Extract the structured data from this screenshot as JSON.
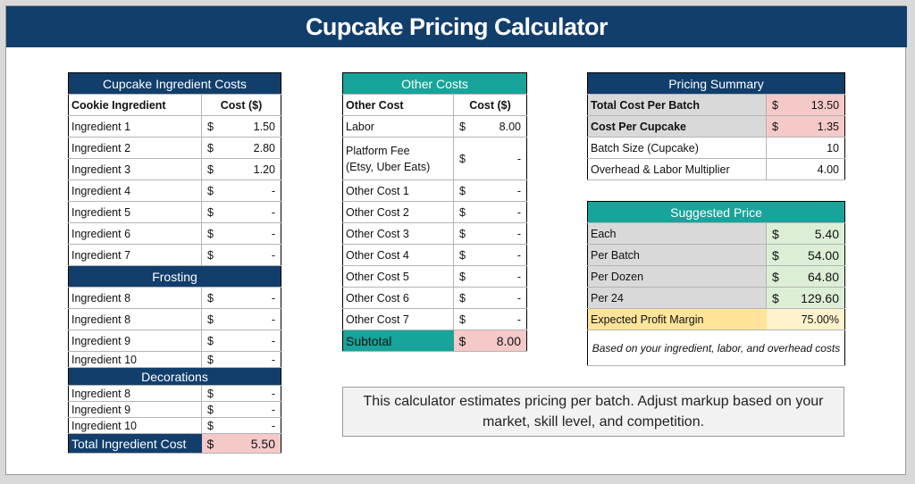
{
  "title": "Cupcake Pricing Calculator",
  "ingredients": {
    "header": "Cupcake Ingredient Costs",
    "col_name": "Cookie Ingredient",
    "col_cost": "Cost ($)",
    "rows": [
      {
        "name": "Ingredient 1",
        "cur": "$",
        "amt": "1.50"
      },
      {
        "name": "Ingredient 2",
        "cur": "$",
        "amt": "2.80"
      },
      {
        "name": "Ingredient 3",
        "cur": "$",
        "amt": "1.20"
      },
      {
        "name": "Ingredient 4",
        "cur": "$",
        "amt": "-"
      },
      {
        "name": "Ingredient 5",
        "cur": "$",
        "amt": "-"
      },
      {
        "name": "Ingredient 6",
        "cur": "$",
        "amt": "-"
      },
      {
        "name": "Ingredient 7",
        "cur": "$",
        "amt": "-"
      }
    ],
    "frosting_header": "Frosting",
    "frosting": [
      {
        "name": "Ingredient 8",
        "cur": "$",
        "amt": "-"
      },
      {
        "name": "Ingredient 8",
        "cur": "$",
        "amt": "-"
      },
      {
        "name": "Ingredient 9",
        "cur": "$",
        "amt": "-"
      },
      {
        "name": "Ingredient 10",
        "cur": "$",
        "amt": "-"
      }
    ],
    "decorations_header": "Decorations",
    "decorations": [
      {
        "name": "Ingredient 8",
        "cur": "$",
        "amt": "-"
      },
      {
        "name": "Ingredient 9",
        "cur": "$",
        "amt": "-"
      },
      {
        "name": "Ingredient 10",
        "cur": "$",
        "amt": "-"
      }
    ],
    "total_label": "Total Ingredient Cost",
    "total_cur": "$",
    "total_amt": "5.50"
  },
  "other": {
    "header": "Other Costs",
    "col_name": "Other Cost",
    "col_cost": "Cost ($)",
    "rows": [
      {
        "name": "Labor",
        "cur": "$",
        "amt": "8.00"
      },
      {
        "name": "Platform Fee",
        "name2": "(Etsy, Uber Eats)",
        "cur": "$",
        "amt": "-"
      },
      {
        "name": "Other Cost 1",
        "cur": "$",
        "amt": "-"
      },
      {
        "name": "Other Cost 2",
        "cur": "$",
        "amt": "-"
      },
      {
        "name": "Other Cost 3",
        "cur": "$",
        "amt": "-"
      },
      {
        "name": "Other Cost 4",
        "cur": "$",
        "amt": "-"
      },
      {
        "name": "Other Cost 5",
        "cur": "$",
        "amt": "-"
      },
      {
        "name": "Other Cost 6",
        "cur": "$",
        "amt": "-"
      },
      {
        "name": "Other Cost 7",
        "cur": "$",
        "amt": "-"
      }
    ],
    "subtotal_label": "Subtotal",
    "subtotal_cur": "$",
    "subtotal_amt": "8.00"
  },
  "summary": {
    "header": "Pricing Summary",
    "total_batch_label": "Total Cost Per Batch",
    "total_batch_cur": "$",
    "total_batch_amt": "13.50",
    "per_cupcake_label": "Cost Per Cupcake",
    "per_cupcake_cur": "$",
    "per_cupcake_amt": "1.35",
    "batch_size_label": "Batch Size (Cupcake)",
    "batch_size_val": "10",
    "multiplier_label": "Overhead & Labor Multiplier",
    "multiplier_val": "4.00"
  },
  "suggested": {
    "header": "Suggested Price",
    "rows": [
      {
        "name": "Each",
        "cur": "$",
        "amt": "5.40"
      },
      {
        "name": "Per Batch",
        "cur": "$",
        "amt": "54.00"
      },
      {
        "name": "Per Dozen",
        "cur": "$",
        "amt": "64.80"
      },
      {
        "name": "Per 24",
        "cur": "$",
        "amt": "129.60"
      }
    ],
    "margin_label": "Expected Profit Margin",
    "margin_val": "75.00%",
    "note": "Based on your ingredient, labor, and overhead costs"
  },
  "footer_note": "This calculator estimates pricing per batch. Adjust markup based on your market, skill level, and competition.",
  "colors": {
    "navy": "#123e6c",
    "teal": "#17a49a",
    "pink": "#f4c9c8",
    "green": "#dcefd6",
    "yellow": "#ffe49a"
  }
}
